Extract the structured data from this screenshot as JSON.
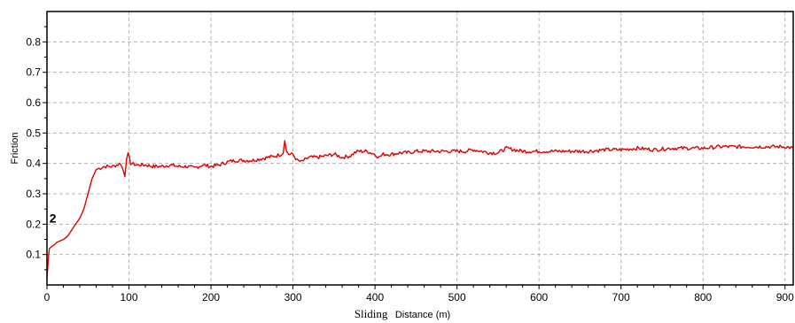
{
  "chart_data": {
    "type": "line",
    "title": "",
    "xlabel_main": "Sliding",
    "xlabel_rest": "Distance (m)",
    "ylabel": "Friction",
    "xlim": [
      0,
      910
    ],
    "ylim": [
      0,
      0.9
    ],
    "x_ticks": [
      0,
      100,
      200,
      300,
      400,
      500,
      600,
      700,
      800,
      900
    ],
    "x_tick_labels": [
      "0",
      "100",
      "200",
      "300",
      "400",
      "500",
      "600",
      "700",
      "800",
      "900"
    ],
    "y_ticks": [
      0.1,
      0.2,
      0.3,
      0.4,
      0.5,
      0.6,
      0.7,
      0.8
    ],
    "y_tick_labels": [
      "0.1",
      "0.2",
      "0.3",
      "0.4",
      "0.5",
      "0.6",
      "0.7",
      "0.8"
    ],
    "grid": true,
    "legend": "none",
    "annotations": [
      {
        "text": "2",
        "x": 3,
        "y": 0.22
      }
    ],
    "series": [
      {
        "color": "#e00000",
        "x": [
          0,
          1,
          2,
          3,
          5,
          8,
          12,
          16,
          20,
          25,
          30,
          35,
          40,
          45,
          50,
          55,
          60,
          65,
          70,
          75,
          80,
          85,
          90,
          95,
          97,
          99,
          102,
          110,
          120,
          130,
          140,
          150,
          160,
          170,
          180,
          190,
          200,
          210,
          220,
          230,
          240,
          250,
          260,
          270,
          280,
          285,
          288,
          290,
          292,
          295,
          300,
          305,
          310,
          320,
          330,
          340,
          350,
          360,
          370,
          375,
          380,
          390,
          400,
          405,
          410,
          420,
          430,
          440,
          450,
          460,
          470,
          480,
          490,
          500,
          510,
          520,
          530,
          540,
          550,
          560,
          570,
          580,
          590,
          600,
          620,
          640,
          660,
          680,
          700,
          720,
          740,
          760,
          780,
          800,
          820,
          840,
          860,
          880,
          900,
          910
        ],
        "y": [
          0.02,
          0.06,
          0.1,
          0.12,
          0.125,
          0.13,
          0.14,
          0.145,
          0.15,
          0.16,
          0.18,
          0.2,
          0.22,
          0.25,
          0.3,
          0.35,
          0.38,
          0.385,
          0.39,
          0.39,
          0.39,
          0.395,
          0.4,
          0.36,
          0.42,
          0.43,
          0.4,
          0.395,
          0.395,
          0.39,
          0.39,
          0.395,
          0.39,
          0.39,
          0.385,
          0.395,
          0.39,
          0.395,
          0.405,
          0.41,
          0.41,
          0.41,
          0.415,
          0.42,
          0.425,
          0.43,
          0.435,
          0.48,
          0.44,
          0.43,
          0.43,
          0.41,
          0.405,
          0.42,
          0.42,
          0.425,
          0.43,
          0.42,
          0.425,
          0.435,
          0.44,
          0.44,
          0.43,
          0.42,
          0.43,
          0.43,
          0.435,
          0.435,
          0.44,
          0.44,
          0.44,
          0.44,
          0.44,
          0.44,
          0.44,
          0.445,
          0.44,
          0.435,
          0.435,
          0.45,
          0.445,
          0.44,
          0.44,
          0.44,
          0.44,
          0.44,
          0.44,
          0.445,
          0.445,
          0.45,
          0.445,
          0.45,
          0.45,
          0.45,
          0.455,
          0.455,
          0.455,
          0.455,
          0.455,
          0.45
        ]
      }
    ]
  }
}
